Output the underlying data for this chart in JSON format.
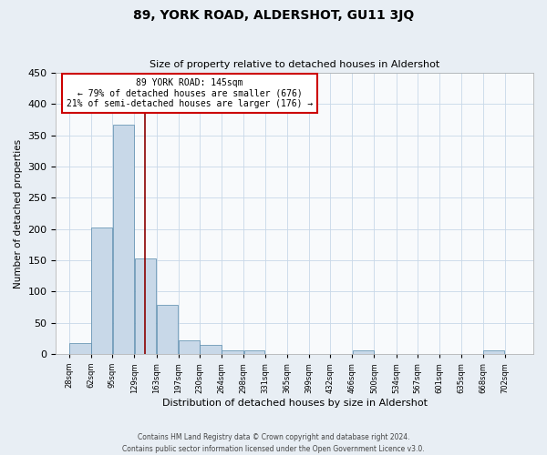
{
  "title": "89, YORK ROAD, ALDERSHOT, GU11 3JQ",
  "subtitle": "Size of property relative to detached houses in Aldershot",
  "xlabel": "Distribution of detached houses by size in Aldershot",
  "ylabel": "Number of detached properties",
  "bar_edges": [
    28,
    62,
    95,
    129,
    163,
    197,
    230,
    264,
    298,
    331,
    365,
    399,
    432,
    466,
    500,
    534,
    567,
    601,
    635,
    668,
    702
  ],
  "bar_heights": [
    18,
    203,
    367,
    153,
    79,
    22,
    15,
    5,
    5,
    0,
    0,
    0,
    0,
    5,
    0,
    0,
    0,
    0,
    0,
    5
  ],
  "bar_labels": [
    "28sqm",
    "62sqm",
    "95sqm",
    "129sqm",
    "163sqm",
    "197sqm",
    "230sqm",
    "264sqm",
    "298sqm",
    "331sqm",
    "365sqm",
    "399sqm",
    "432sqm",
    "466sqm",
    "500sqm",
    "534sqm",
    "567sqm",
    "601sqm",
    "635sqm",
    "668sqm",
    "702sqm"
  ],
  "bar_color": "#c8d8e8",
  "bar_edgecolor": "#5588aa",
  "vline_x": 145,
  "vline_color": "#8b0000",
  "annotation_title": "89 YORK ROAD: 145sqm",
  "annotation_line1": "← 79% of detached houses are smaller (676)",
  "annotation_line2": "21% of semi-detached houses are larger (176) →",
  "annotation_box_color": "#ffffff",
  "annotation_box_edgecolor": "#cc0000",
  "ylim": [
    0,
    450
  ],
  "yticks": [
    0,
    50,
    100,
    150,
    200,
    250,
    300,
    350,
    400,
    450
  ],
  "footer_line1": "Contains HM Land Registry data © Crown copyright and database right 2024.",
  "footer_line2": "Contains public sector information licensed under the Open Government Licence v3.0.",
  "background_color": "#e8eef4",
  "plot_background": "#f8fafc",
  "grid_color": "#c8d8e8"
}
